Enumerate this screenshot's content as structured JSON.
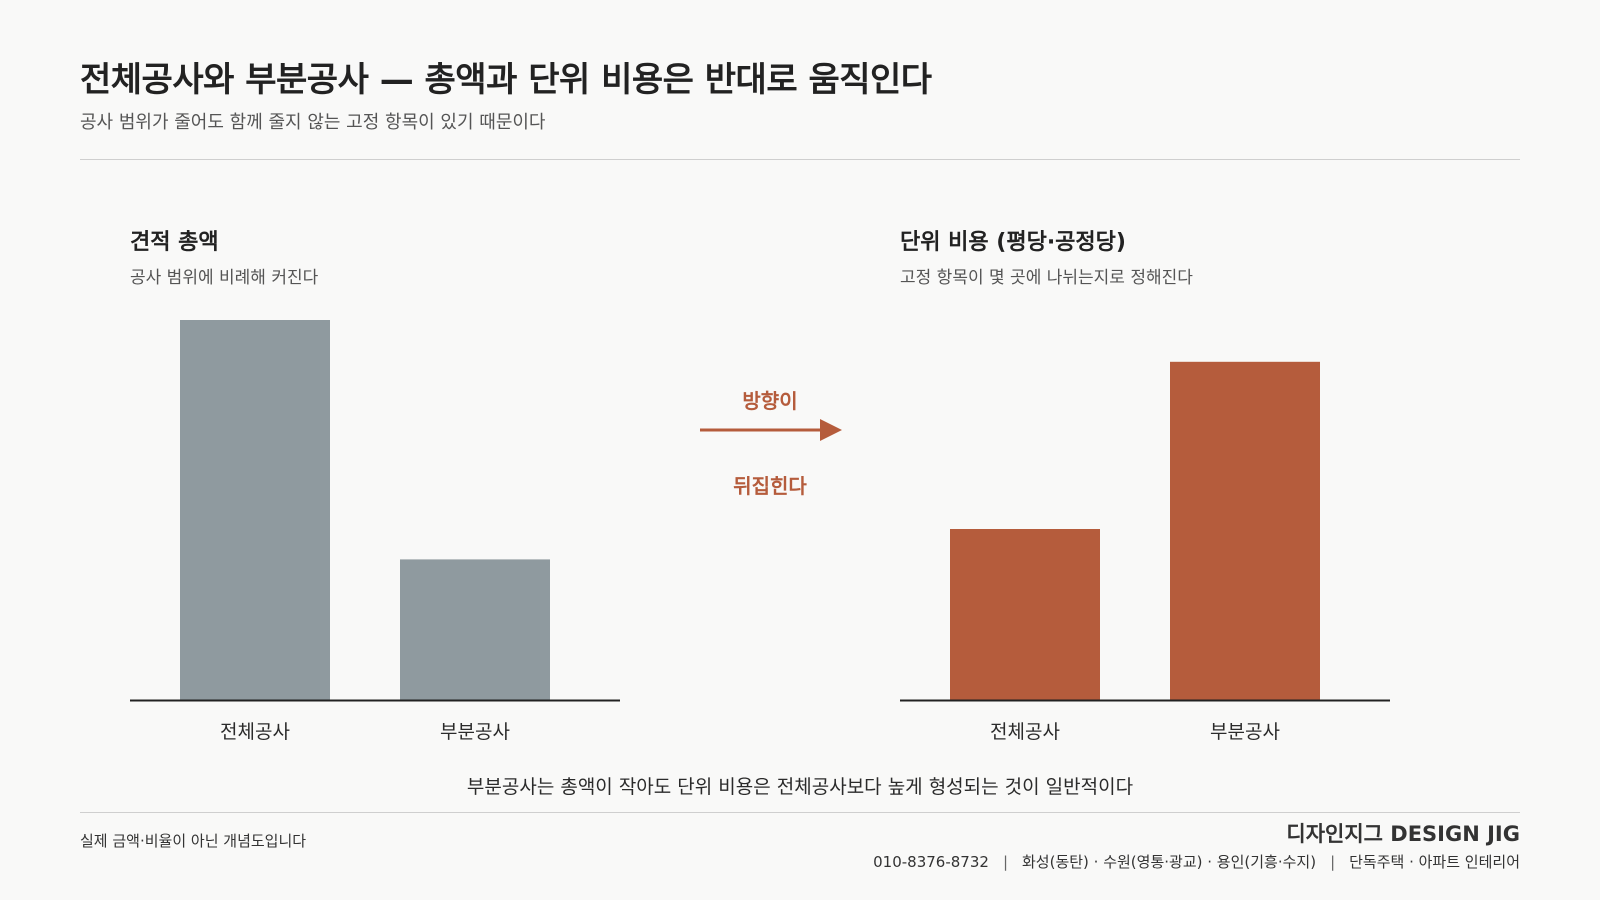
{
  "header": {
    "title": "전체공사와 부분공사 — 총액과 단위 비용은 반대로 움직인다",
    "subtitle": "공사 범위가 줄어도 함께 줄지 않는 고정 항목이 있기 때문이다"
  },
  "colors": {
    "total_bars": "#8f9a9f",
    "unit_bars": "#b55c3c",
    "accent": "#b55c3c"
  },
  "chart_data": [
    {
      "type": "bar",
      "title": "견적 총액",
      "subtitle": "공사 범위에 비례해 커진다",
      "categories": [
        "전체공사",
        "부분공사"
      ],
      "values": [
        100,
        37
      ],
      "ylim": [
        0,
        100
      ],
      "color": "#8f9a9f",
      "grid": false
    },
    {
      "type": "bar",
      "title": "단위 비용 (평당·공정당)",
      "subtitle": "고정 항목이 몇 곳에 나뉘는지로 정해진다",
      "categories": [
        "전체공사",
        "부분공사"
      ],
      "values": [
        45,
        89
      ],
      "ylim": [
        0,
        100
      ],
      "color": "#b55c3c",
      "grid": false
    }
  ],
  "middle": {
    "top_label": "방향이",
    "bottom_label": "뒤집힌다"
  },
  "note": "부분공사는 총액이 작아도 단위 비용은 전체공사보다 높게 형성되는 것이 일반적이다",
  "footer": {
    "disclaimer": "실제 금액·비율이 아닌 개념도입니다",
    "brand": "디자인지그 DESIGN JIG",
    "phone": "010-8376-8732",
    "regions": "화성(동탄) · 수원(영통·광교) · 용인(기흥·수지)",
    "services": "단독주택 · 아파트 인테리어",
    "separator": "|"
  }
}
